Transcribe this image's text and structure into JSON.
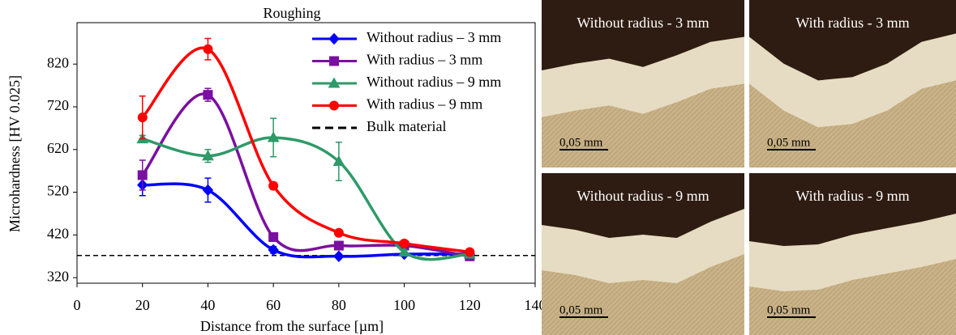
{
  "chart_data": {
    "type": "line",
    "title": "Roughing",
    "x_label": "Distance from the surface [µm]",
    "y_label": "Microhardness [HV 0.025]",
    "x": [
      20,
      40,
      60,
      80,
      100,
      120
    ],
    "series": [
      {
        "name": "Without radius – 3 mm",
        "color": "#0000ff",
        "marker": "diamond",
        "values": [
          537,
          525,
          385,
          370,
          375,
          375
        ],
        "errors": [
          25,
          28,
          8,
          5,
          5,
          5
        ]
      },
      {
        "name": "With radius – 3 mm",
        "color": "#7b0fa0",
        "marker": "square",
        "values": [
          560,
          748,
          415,
          395,
          395,
          370
        ],
        "errors": [
          35,
          15,
          8,
          5,
          5,
          8
        ]
      },
      {
        "name": "Without radius – 9 mm",
        "color": "#2e9a68",
        "marker": "triangle",
        "values": [
          645,
          605,
          648,
          592,
          380,
          375
        ],
        "errors": [
          8,
          15,
          45,
          45,
          5,
          5
        ]
      },
      {
        "name": "With radius – 9 mm",
        "color": "#ff0000",
        "marker": "circle",
        "values": [
          695,
          855,
          535,
          425,
          400,
          380
        ],
        "errors": [
          50,
          25,
          8,
          5,
          5,
          5
        ]
      }
    ],
    "reference_line": {
      "name": "Bulk material",
      "value": 372,
      "color": "#000000"
    },
    "xlim": [
      0,
      140
    ],
    "xticks": [
      0,
      20,
      40,
      60,
      80,
      100,
      120,
      140
    ],
    "ylim": [
      307,
      917
    ],
    "yticks": [
      320,
      420,
      520,
      620,
      720,
      820
    ],
    "legend": "upper-right",
    "grid": false
  },
  "images": [
    {
      "label": "Without radius - 3 mm",
      "scale": "0,05 mm"
    },
    {
      "label": "With radius - 3 mm",
      "scale": "0,05 mm"
    },
    {
      "label": "Without radius - 9 mm",
      "scale": "0,05 mm"
    },
    {
      "label": "With radius - 9 mm",
      "scale": "0,05 mm"
    }
  ]
}
